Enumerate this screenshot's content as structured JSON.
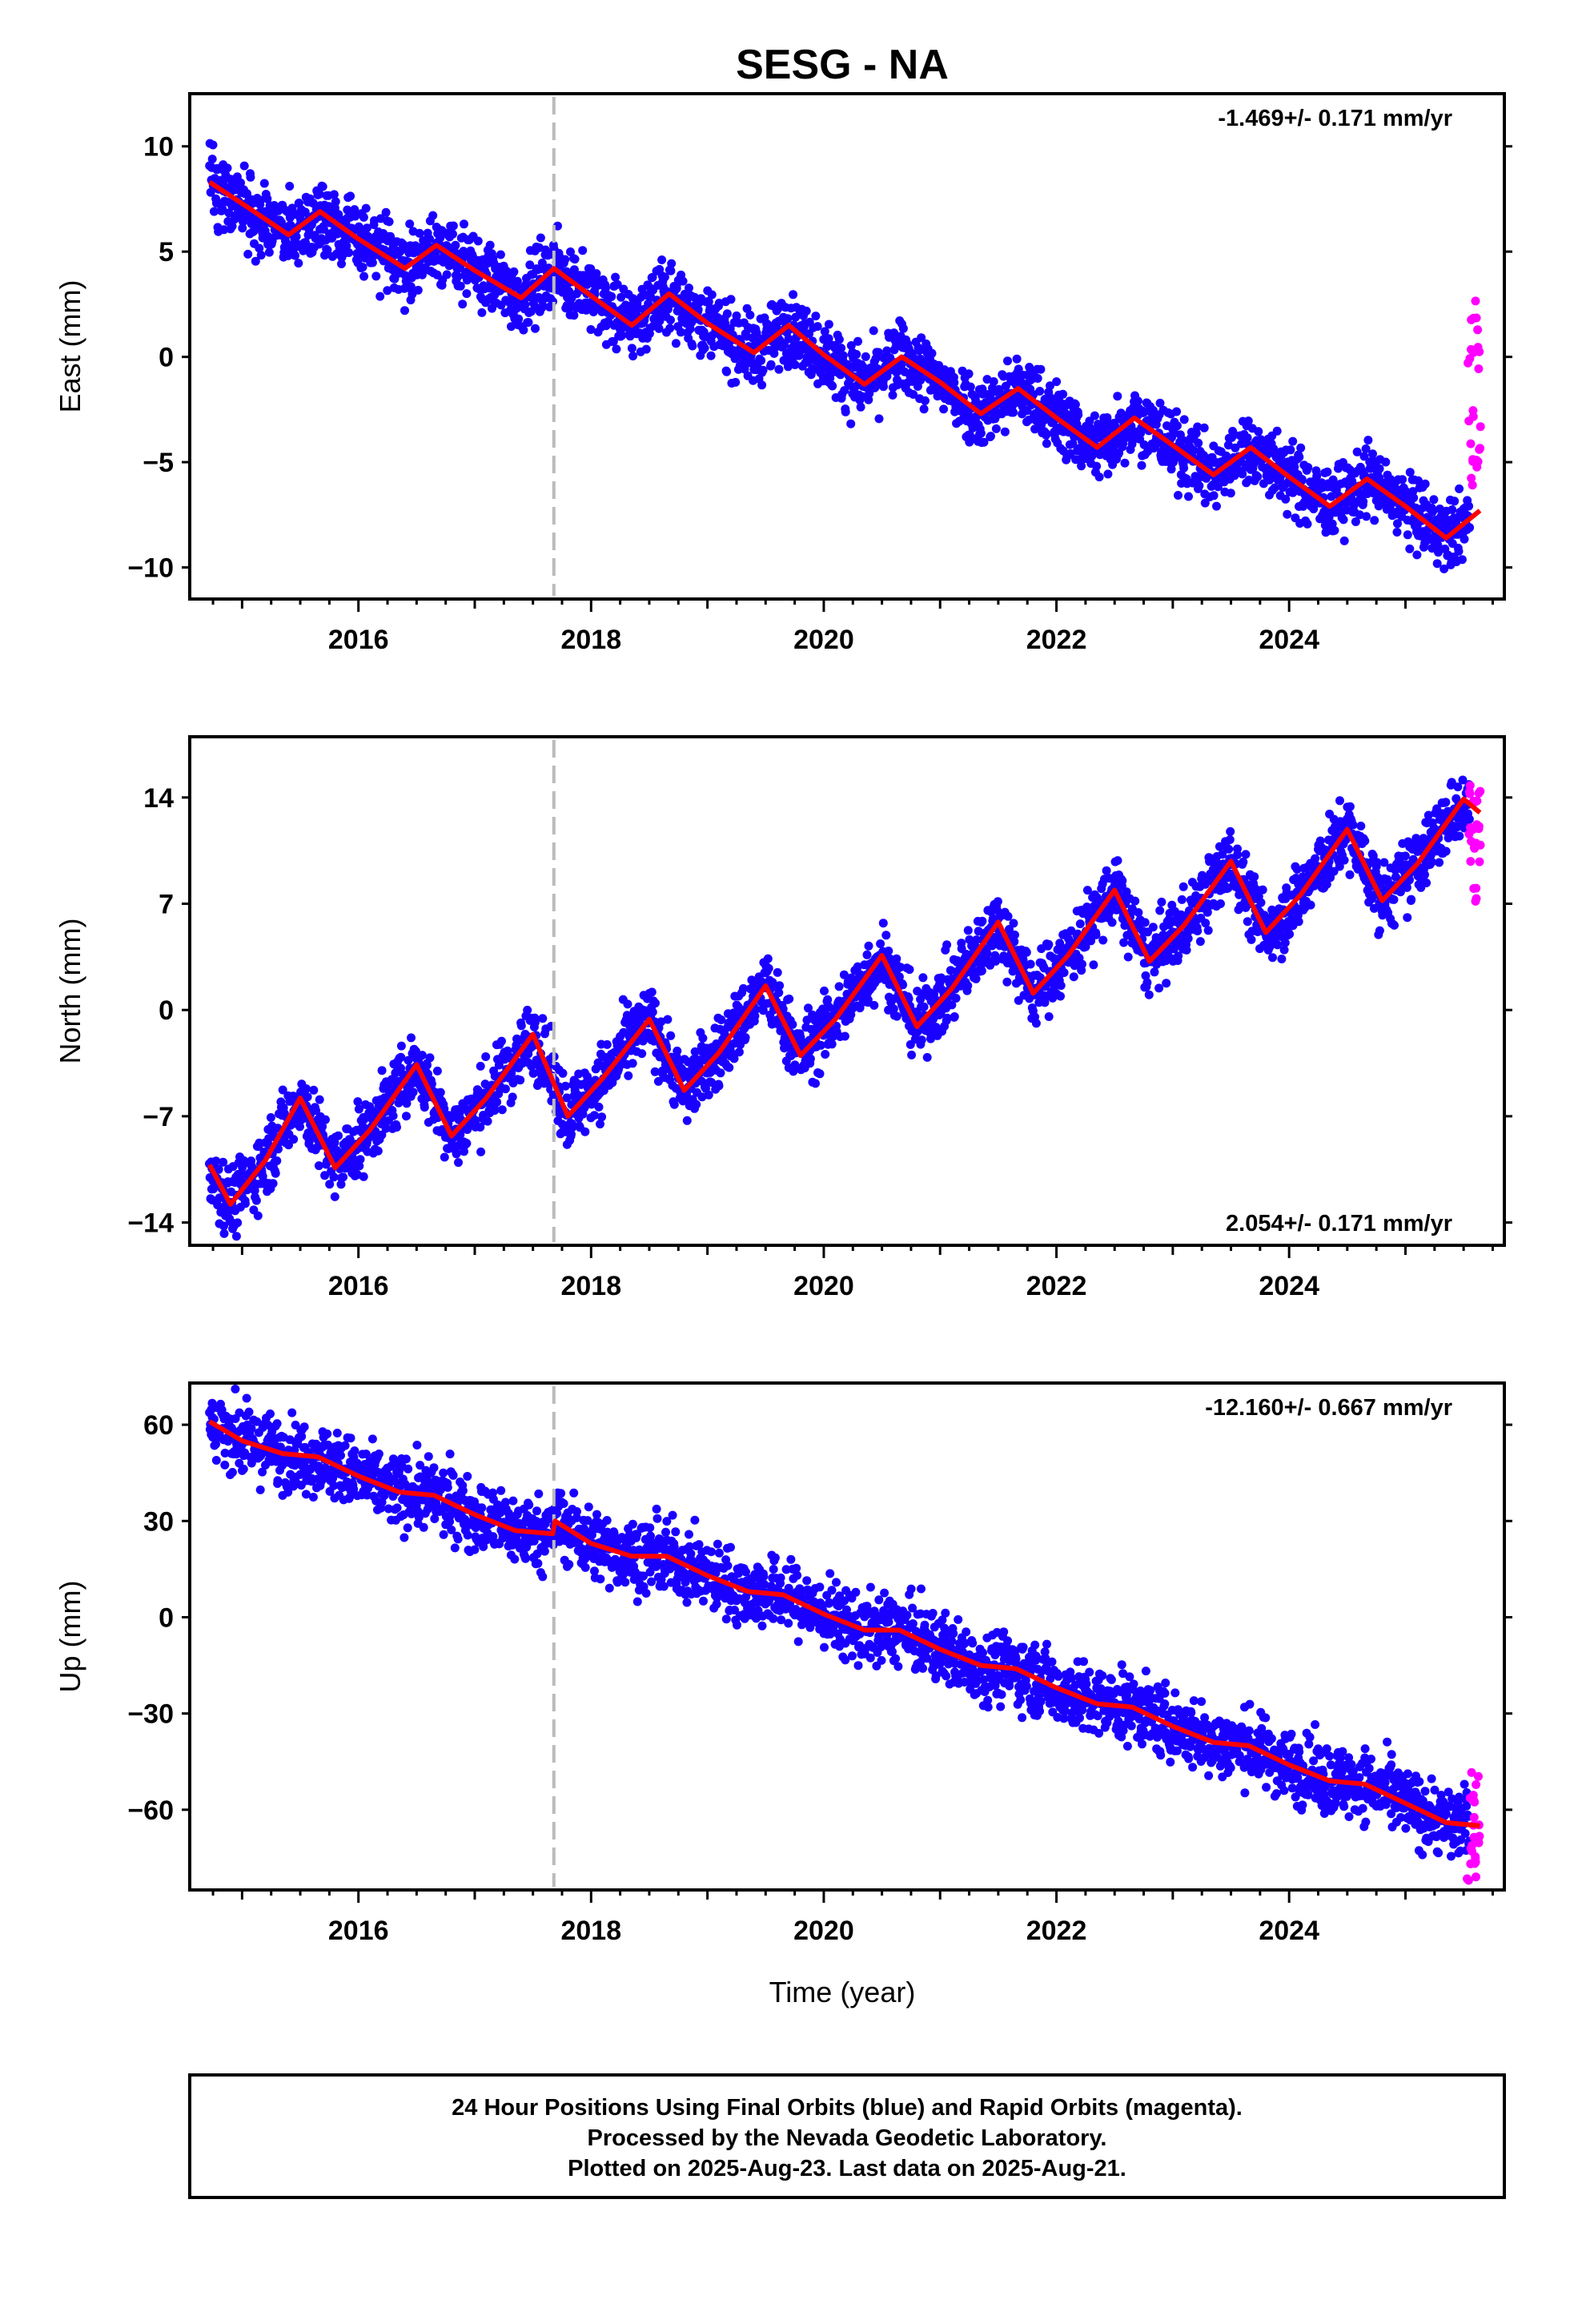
{
  "chart_data": {
    "type": "scatter",
    "title": "SESG - NA",
    "xlabel": "Time (year)",
    "x_ticks": [
      2016,
      2018,
      2020,
      2022,
      2024
    ],
    "xlim": [
      2014.55,
      2025.85
    ],
    "data_start": 2014.72,
    "data_end": 2025.64,
    "rapid_start": 2025.55,
    "equipment_change": 2017.68,
    "colors": {
      "final": "#1a00ff",
      "rapid": "#ff00ff",
      "model": "#ff0000",
      "change_line": "#bbbbbb"
    },
    "panels": [
      {
        "key": "east",
        "ylabel": "East (mm)",
        "ylim": [
          -11.5,
          12.5
        ],
        "y_ticks": [
          -10,
          -5,
          0,
          5,
          10
        ],
        "rate": "-1.469+/- 0.171 mm/yr",
        "rate_pos": "top-right",
        "model": {
          "x": [
            2014.72,
            2015.05,
            2015.4,
            2015.67,
            2016.0,
            2016.4,
            2016.67,
            2017.0,
            2017.4,
            2017.68,
            2018.0,
            2018.35,
            2018.67,
            2019.0,
            2019.4,
            2019.7,
            2020.0,
            2020.35,
            2020.67,
            2021.0,
            2021.35,
            2021.67,
            2022.0,
            2022.35,
            2022.67,
            2023.0,
            2023.35,
            2023.67,
            2024.0,
            2024.35,
            2024.67,
            2025.0,
            2025.35,
            2025.64
          ],
          "y": [
            8.3,
            7.1,
            5.8,
            6.9,
            5.6,
            4.2,
            5.3,
            4.1,
            2.8,
            4.2,
            2.9,
            1.5,
            3.0,
            1.6,
            0.2,
            1.5,
            0.1,
            -1.3,
            0.0,
            -1.2,
            -2.7,
            -1.5,
            -2.9,
            -4.3,
            -2.9,
            -4.2,
            -5.6,
            -4.3,
            -5.7,
            -7.1,
            -5.8,
            -7.1,
            -8.6,
            -7.3
          ]
        },
        "rapid_range": [
          -6.8,
          2.8
        ]
      },
      {
        "key": "north",
        "ylabel": "North (mm)",
        "ylim": [
          -15.5,
          18.0
        ],
        "y_ticks": [
          -14,
          -7,
          0,
          7,
          14
        ],
        "rate": "2.054+/- 0.171 mm/yr",
        "rate_pos": "bottom-right",
        "model": {
          "x": [
            2014.72,
            2014.9,
            2015.2,
            2015.5,
            2015.8,
            2016.1,
            2016.5,
            2016.8,
            2017.1,
            2017.5,
            2017.8,
            2018.1,
            2018.5,
            2018.8,
            2019.1,
            2019.5,
            2019.8,
            2020.1,
            2020.5,
            2020.8,
            2021.1,
            2021.5,
            2021.8,
            2022.1,
            2022.5,
            2022.8,
            2023.1,
            2023.5,
            2023.8,
            2024.1,
            2024.5,
            2024.8,
            2025.1,
            2025.5,
            2025.64
          ],
          "y": [
            -10.2,
            -12.8,
            -9.9,
            -5.8,
            -10.4,
            -7.9,
            -3.6,
            -8.3,
            -5.8,
            -1.6,
            -7.0,
            -4.5,
            -0.6,
            -5.3,
            -2.8,
            1.6,
            -3.0,
            -0.6,
            3.6,
            -1.1,
            1.4,
            5.8,
            1.1,
            3.6,
            7.9,
            3.2,
            5.6,
            9.8,
            5.1,
            7.6,
            11.9,
            7.2,
            9.6,
            13.9,
            13.0
          ]
        },
        "rapid_range": [
          7.0,
          15.5
        ]
      },
      {
        "key": "up",
        "ylabel": "Up (mm)",
        "ylim": [
          -85,
          73
        ],
        "y_ticks": [
          -60,
          -30,
          0,
          30,
          60
        ],
        "rate": "-12.160+/- 0.667 mm/yr",
        "rate_pos": "top-right",
        "model": {
          "x": [
            2014.72,
            2015.0,
            2015.35,
            2015.65,
            2016.0,
            2016.35,
            2016.65,
            2017.0,
            2017.35,
            2017.67,
            2017.69,
            2018.0,
            2018.35,
            2018.65,
            2019.0,
            2019.35,
            2019.65,
            2020.0,
            2020.35,
            2020.65,
            2021.0,
            2021.35,
            2021.65,
            2022.0,
            2022.35,
            2022.65,
            2023.0,
            2023.35,
            2023.65,
            2024.0,
            2024.35,
            2024.65,
            2025.0,
            2025.35,
            2025.64
          ],
          "y": [
            61,
            55,
            51,
            50,
            44,
            39,
            38,
            32,
            27,
            26,
            30,
            23,
            19,
            19,
            13,
            8,
            7,
            1,
            -4,
            -4,
            -10,
            -15,
            -16,
            -22,
            -27,
            -28,
            -34,
            -39,
            -40,
            -46,
            -51,
            -52,
            -58,
            -64,
            -65
          ]
        },
        "rapid_range": [
          -82,
          -47
        ]
      }
    ]
  },
  "footer": {
    "line1": "24 Hour Positions Using Final Orbits (blue) and Rapid Orbits (magenta).",
    "line2": "Processed by the Nevada Geodetic Laboratory.",
    "line3": "Plotted on 2025-Aug-23. Last data on 2025-Aug-21."
  }
}
